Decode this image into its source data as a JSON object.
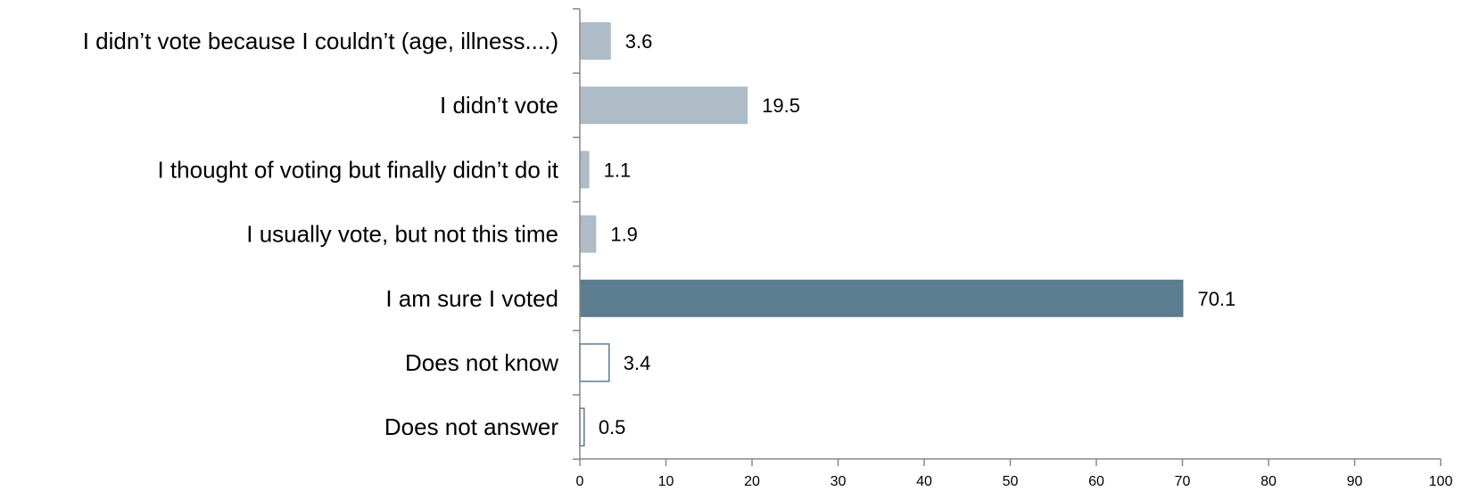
{
  "chart_data": {
    "type": "bar",
    "orientation": "horizontal",
    "categories": [
      "I didn’t vote because I couldn’t (age, illness....)",
      "I didn’t vote",
      "I thought of voting but finally didn’t do it",
      "I usually vote, but not this time",
      "I am sure I voted",
      "Does not know",
      "Does not answer"
    ],
    "values": [
      3.6,
      19.5,
      1.1,
      1.9,
      70.1,
      3.4,
      0.5
    ],
    "value_labels": [
      "3.6",
      "19.5",
      "1.1",
      "1.9",
      "70.1",
      "3.4",
      "0.5"
    ],
    "bar_styles": [
      "light",
      "light",
      "light",
      "light",
      "dark",
      "outline",
      "outline"
    ],
    "xlim": [
      0,
      100
    ],
    "x_ticks": [
      0,
      10,
      20,
      30,
      40,
      50,
      60,
      70,
      80,
      90,
      100
    ],
    "title": "",
    "xlabel": "",
    "ylabel": "",
    "grid": false,
    "legend": "none",
    "colors": {
      "light": "#adbcc6",
      "dark": "#5b7d8f",
      "outline_stroke": "#5b7d8f",
      "outline_fill": "#ffffff",
      "axis": "#888888"
    }
  }
}
